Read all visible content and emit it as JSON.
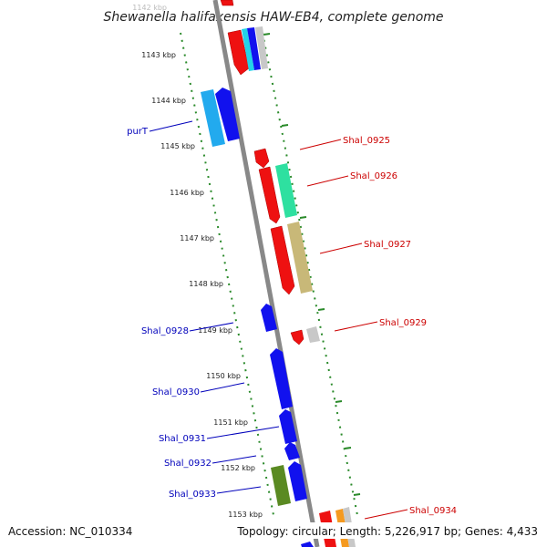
{
  "title": "Shewanella halifaxensis HAW-EB4, complete genome",
  "footer": {
    "accession": "Accession: NC_010334",
    "topology": "Topology: circular; Length: 5,226,917 bp; Genes: 4,433"
  },
  "kbp_ticks": [
    "1142 kbp",
    "1143 kbp",
    "1144 kbp",
    "1145 kbp",
    "1146 kbp",
    "1147 kbp",
    "1148 kbp",
    "1149 kbp",
    "1150 kbp",
    "1151 kbp",
    "1152 kbp",
    "1153 kbp"
  ],
  "colors": {
    "forward_gene": "#ee1111",
    "reverse_gene": "#1111ee",
    "backbone": "#888888",
    "tick": "#2a8a2a",
    "label_forward": "#cc0000",
    "label_reverse": "#0000bb"
  },
  "labels_right": [
    "Shal_0925",
    "Shal_0926",
    "Shal_0927",
    "Shal_0929",
    "Shal_0934"
  ],
  "labels_left": [
    "purT",
    "Shal_0928",
    "Shal_0930",
    "Shal_0931",
    "Shal_0932",
    "Shal_0933"
  ]
}
